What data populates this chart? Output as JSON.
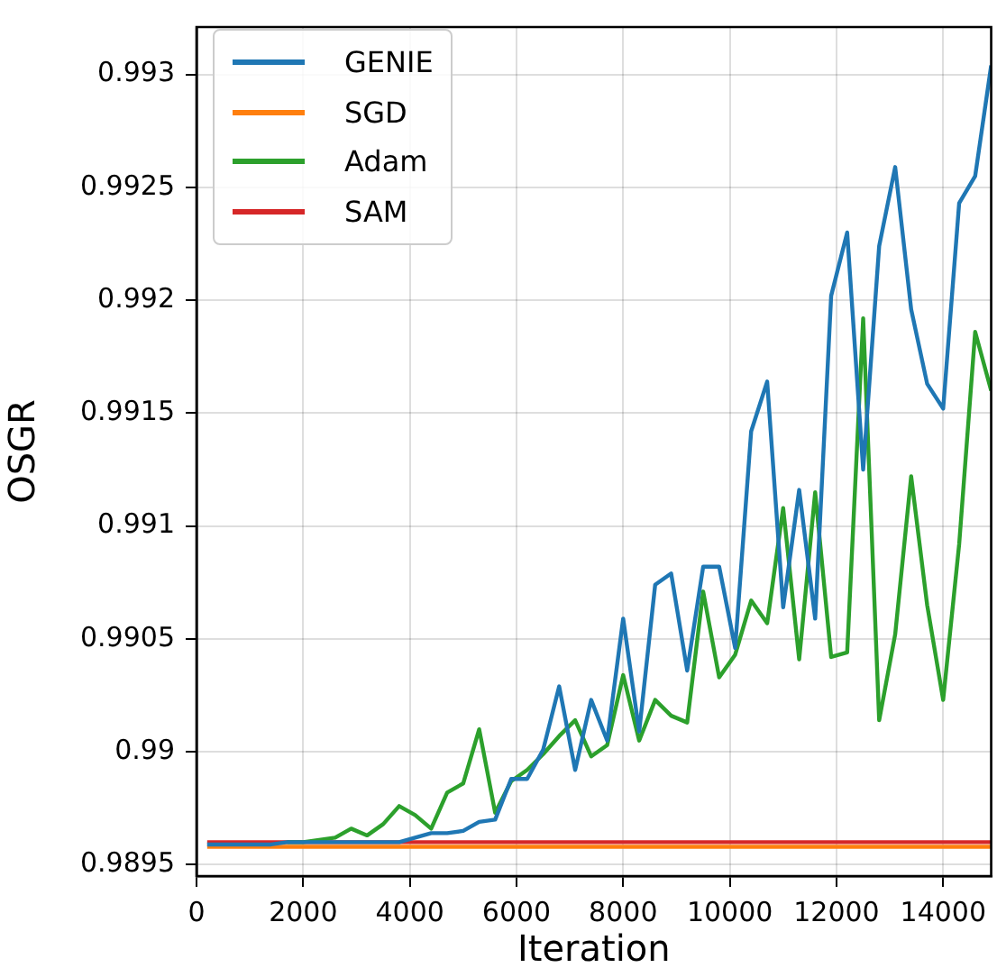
{
  "chart_data": {
    "type": "line",
    "xlabel": "Iteration",
    "ylabel": "OSGR",
    "x": [
      200,
      500,
      800,
      1100,
      1400,
      1700,
      2000,
      2300,
      2600,
      2900,
      3200,
      3500,
      3800,
      4100,
      4400,
      4700,
      5000,
      5300,
      5600,
      5900,
      6200,
      6500,
      6800,
      7100,
      7400,
      7700,
      8000,
      8300,
      8600,
      8900,
      9200,
      9500,
      9800,
      10100,
      10400,
      10700,
      11000,
      11300,
      11600,
      11900,
      12200,
      12500,
      12800,
      13100,
      13400,
      13700,
      14000,
      14300,
      14600,
      14900
    ],
    "series": [
      {
        "name": "GENIE",
        "color": "#1f77b4",
        "values": [
          0.98959,
          0.98959,
          0.98959,
          0.98959,
          0.98959,
          0.9896,
          0.9896,
          0.9896,
          0.9896,
          0.9896,
          0.9896,
          0.9896,
          0.9896,
          0.98962,
          0.98964,
          0.98964,
          0.98965,
          0.98969,
          0.9897,
          0.98988,
          0.98988,
          0.99001,
          0.99029,
          0.98992,
          0.99023,
          0.99005,
          0.99059,
          0.99009,
          0.99074,
          0.99079,
          0.99036,
          0.99082,
          0.99082,
          0.99046,
          0.99142,
          0.99164,
          0.99064,
          0.99116,
          0.99059,
          0.99202,
          0.9923,
          0.99125,
          0.99224,
          0.99259,
          0.99196,
          0.99163,
          0.99152,
          0.99243,
          0.99255,
          0.99304
        ]
      },
      {
        "name": "SGD",
        "color": "#ff7f0e",
        "values": [
          0.98958,
          0.98958,
          0.98958,
          0.98958,
          0.98958,
          0.98958,
          0.98958,
          0.98958,
          0.98958,
          0.98958,
          0.98958,
          0.98958,
          0.98958,
          0.98958,
          0.98958,
          0.98958,
          0.98958,
          0.98958,
          0.98958,
          0.98958,
          0.98958,
          0.98958,
          0.98958,
          0.98958,
          0.98958,
          0.98958,
          0.98958,
          0.98958,
          0.98958,
          0.98958,
          0.98958,
          0.98958,
          0.98958,
          0.98958,
          0.98958,
          0.98958,
          0.98958,
          0.98958,
          0.98958,
          0.98958,
          0.98958,
          0.98958,
          0.98958,
          0.98958,
          0.98958,
          0.98958,
          0.98958,
          0.98958,
          0.98958,
          0.98958
        ]
      },
      {
        "name": "Adam",
        "color": "#2ca02c",
        "values": [
          null,
          null,
          null,
          null,
          null,
          0.9896,
          0.9896,
          0.98961,
          0.98962,
          0.98966,
          0.98963,
          0.98968,
          0.98976,
          0.98972,
          0.98966,
          0.98982,
          0.98986,
          0.9901,
          0.98973,
          0.98987,
          0.98992,
          0.98999,
          0.99007,
          0.99014,
          0.98998,
          0.99003,
          0.99034,
          0.99005,
          0.99023,
          0.99016,
          0.99013,
          0.99071,
          0.99033,
          0.99043,
          0.99067,
          0.99057,
          0.99108,
          0.99041,
          0.99115,
          0.99042,
          0.99044,
          0.99192,
          0.99014,
          0.99052,
          0.99122,
          0.99065,
          0.99023,
          0.99092,
          0.99186,
          0.9916
        ]
      },
      {
        "name": "SAM",
        "color": "#d62728",
        "values": [
          0.9896,
          0.9896,
          0.9896,
          0.9896,
          0.9896,
          0.9896,
          0.9896,
          0.9896,
          0.9896,
          0.9896,
          0.9896,
          0.9896,
          0.9896,
          0.9896,
          0.9896,
          0.9896,
          0.9896,
          0.9896,
          0.9896,
          0.9896,
          0.9896,
          0.9896,
          0.9896,
          0.9896,
          0.9896,
          0.9896,
          0.9896,
          0.9896,
          0.9896,
          0.9896,
          0.9896,
          0.9896,
          0.9896,
          0.9896,
          0.9896,
          0.9896,
          0.9896,
          0.9896,
          0.9896,
          0.9896,
          0.9896,
          0.9896,
          0.9896,
          0.9896,
          0.9896,
          0.9896,
          0.9896,
          0.9896,
          0.9896,
          0.9896
        ]
      }
    ],
    "xlim": [
      0,
      14900
    ],
    "xticks": [
      0,
      2000,
      4000,
      6000,
      8000,
      10000,
      12000,
      14000
    ],
    "ylim": [
      0.98945,
      0.99321
    ],
    "yticks": [
      0.9895,
      0.99,
      0.9905,
      0.991,
      0.9915,
      0.992,
      0.9925,
      0.993
    ],
    "grid": true,
    "legend": "top left",
    "marker": "none",
    "line_style": "solid"
  }
}
